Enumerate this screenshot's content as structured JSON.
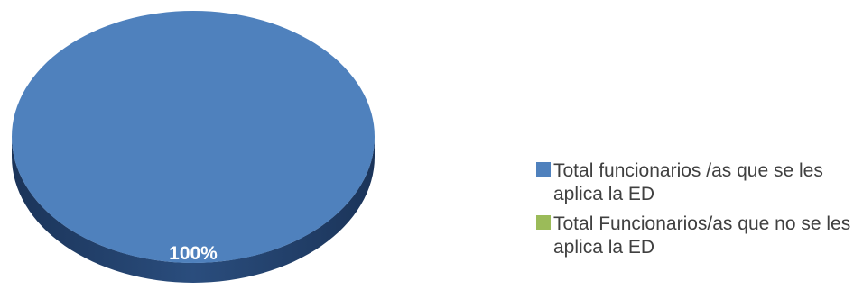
{
  "chart_data": {
    "type": "pie",
    "style": "3d",
    "slices": [
      {
        "name": "Total funcionarios /as que se les aplica la ED",
        "value": 100,
        "label": "100%",
        "color": "#4F81BD",
        "side_color": "#22406B"
      },
      {
        "name": "Total Funcionarios/as que no se les aplica la ED",
        "value": 0,
        "label": "",
        "color": "#9BBB59",
        "side_color": "#6E8C36"
      }
    ],
    "legend": {
      "placement": "right",
      "items": [
        {
          "label": "Total funcionarios /as que se les aplica la ED",
          "color": "#4F81BD"
        },
        {
          "label": "Total Funcionarios/as que no se les aplica la ED",
          "color": "#9BBB59"
        }
      ]
    }
  }
}
